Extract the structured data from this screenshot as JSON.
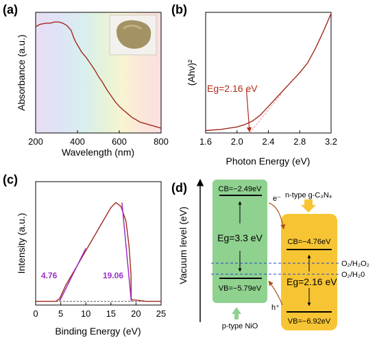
{
  "panels": {
    "a": "(a)",
    "b": "(b)",
    "c": "(c)",
    "d": "(d)"
  },
  "colors": {
    "curve": "#a0281c",
    "fit_c": "#9b2fc4",
    "nio": "#8fd18f",
    "gcn": "#f7c534",
    "dashed": "#1f49c7"
  },
  "chart_data": [
    {
      "type": "line",
      "panel": "a",
      "xlabel": "Wavelength (nm)",
      "ylabel": "Absorbance (a.u.)",
      "xlim": [
        200,
        800
      ],
      "xticks": [
        200,
        400,
        600,
        800
      ],
      "ylim": [
        0,
        1
      ],
      "grid": false,
      "background": "visible-spectrum gradient",
      "inset": "sample photograph (top-right)",
      "series": [
        {
          "x": [
            200,
            220,
            250,
            270,
            290,
            310,
            330,
            350,
            370,
            380,
            390,
            400,
            420,
            440,
            460,
            480,
            500,
            520,
            540,
            560,
            580,
            600,
            620,
            640,
            660,
            680,
            700,
            720,
            740,
            760,
            780,
            800
          ],
          "y": [
            0.88,
            0.9,
            0.91,
            0.91,
            0.92,
            0.92,
            0.91,
            0.89,
            0.85,
            0.8,
            0.76,
            0.73,
            0.67,
            0.63,
            0.58,
            0.53,
            0.47,
            0.42,
            0.36,
            0.31,
            0.26,
            0.22,
            0.19,
            0.16,
            0.13,
            0.11,
            0.09,
            0.08,
            0.07,
            0.06,
            0.05,
            0.04
          ]
        }
      ]
    },
    {
      "type": "line",
      "panel": "b",
      "xlabel": "Photon Energy (eV)",
      "ylabel": "(Ahν)²",
      "xlim": [
        1.6,
        3.2
      ],
      "xticks": [
        1.6,
        2.0,
        2.4,
        2.8,
        3.2
      ],
      "ylim": [
        0,
        1
      ],
      "grid": false,
      "annotation": "Eg=2.16 eV",
      "series": [
        {
          "x": [
            1.6,
            1.8,
            2.0,
            2.1,
            2.2,
            2.3,
            2.4,
            2.5,
            2.6,
            2.7,
            2.8,
            2.9,
            3.0,
            3.1,
            3.2
          ],
          "y": [
            0.02,
            0.03,
            0.05,
            0.07,
            0.1,
            0.15,
            0.22,
            0.29,
            0.36,
            0.43,
            0.5,
            0.58,
            0.7,
            0.84,
            0.99
          ]
        }
      ],
      "tangent": {
        "x": [
          2.16,
          2.56
        ],
        "y": [
          0,
          0.32
        ]
      }
    },
    {
      "type": "line",
      "panel": "c",
      "xlabel": "Binding Energy (eV)",
      "ylabel": "Intensity (a.u.)",
      "xlim": [
        0,
        25
      ],
      "xticks": [
        0,
        5,
        10,
        15,
        20,
        25
      ],
      "ylim": [
        0,
        1
      ],
      "grid": false,
      "annotations": [
        "4.76",
        "19.06"
      ],
      "series": [
        {
          "x": [
            0,
            2,
            4.0,
            4.76,
            6,
            8,
            10,
            12,
            14,
            15,
            16,
            17,
            18,
            18.6,
            19.0,
            19.06,
            19.5,
            20,
            22,
            25
          ],
          "y": [
            0.03,
            0.03,
            0.03,
            0.05,
            0.16,
            0.3,
            0.44,
            0.58,
            0.72,
            0.79,
            0.83,
            0.8,
            0.68,
            0.48,
            0.25,
            0.05,
            0.04,
            0.04,
            0.03,
            0.03
          ]
        }
      ],
      "baseline": 0.03,
      "fits": [
        {
          "x": [
            4.76,
            10
          ],
          "y": [
            0.03,
            0.46
          ]
        },
        {
          "x": [
            19.06,
            17.2
          ],
          "y": [
            0.03,
            0.83
          ]
        }
      ]
    },
    {
      "type": "diagram",
      "panel": "d",
      "ylabel": "Vacuum level (eV)",
      "nio": {
        "name": "p-type NiO",
        "cb": "CB=−2.49eV",
        "vb": "VB=−5.79eV",
        "eg": "Eg=3.3 eV"
      },
      "gcn": {
        "name": "n-type g-C₃N₄",
        "cb": "CB=−4.76eV",
        "vb": "VB=−6.92eV",
        "eg": "Eg=2.16 eV"
      },
      "redox": [
        "O₂/H₂O₂",
        "O₂/H₂0"
      ],
      "carriers": {
        "electron": "e⁻",
        "hole": "h⁺"
      }
    }
  ]
}
